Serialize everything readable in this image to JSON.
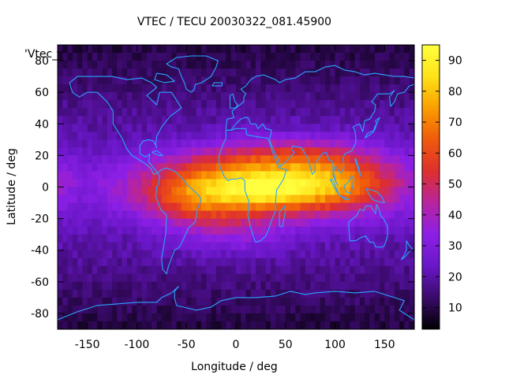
{
  "chart_data": {
    "type": "heatmap",
    "title": "VTEC / TECU 20030322_081.45900",
    "xlabel": "Longitude / deg",
    "ylabel": "Latitude / deg",
    "key_label": "'Vtec_",
    "xlim": [
      -180,
      180
    ],
    "ylim": [
      -90,
      90
    ],
    "xticks": [
      -150,
      -100,
      -50,
      0,
      50,
      100,
      150
    ],
    "yticks": [
      -80,
      -60,
      -40,
      -20,
      0,
      20,
      40,
      60,
      80
    ],
    "colorbar": {
      "range": [
        3,
        95
      ],
      "ticks": [
        10,
        20,
        30,
        40,
        50,
        60,
        70,
        80,
        90
      ],
      "colors": [
        "#000000",
        "#3a0a6a",
        "#6a17c8",
        "#8c1fe6",
        "#b8249e",
        "#de2f2e",
        "#f05a0c",
        "#fa9e00",
        "#ffe21a",
        "#ffff40"
      ]
    },
    "grid": false,
    "overlay": "coastlines",
    "background_level": 18,
    "features": [
      {
        "lon": 30,
        "lat": 0,
        "amp": 52,
        "sx": 85,
        "sy": 14
      },
      {
        "lon": 25,
        "lat": -2,
        "amp": 16,
        "sx": 30,
        "sy": 7
      },
      {
        "lon": 100,
        "lat": 2,
        "amp": 18,
        "sx": 40,
        "sy": 10
      },
      {
        "lon": 60,
        "lat": 20,
        "amp": 20,
        "sx": 60,
        "sy": 9
      },
      {
        "lon": -40,
        "lat": -8,
        "amp": 18,
        "sx": 35,
        "sy": 14
      },
      {
        "lon": 0,
        "lat": -30,
        "amp": 10,
        "sx": 35,
        "sy": 10
      }
    ]
  }
}
